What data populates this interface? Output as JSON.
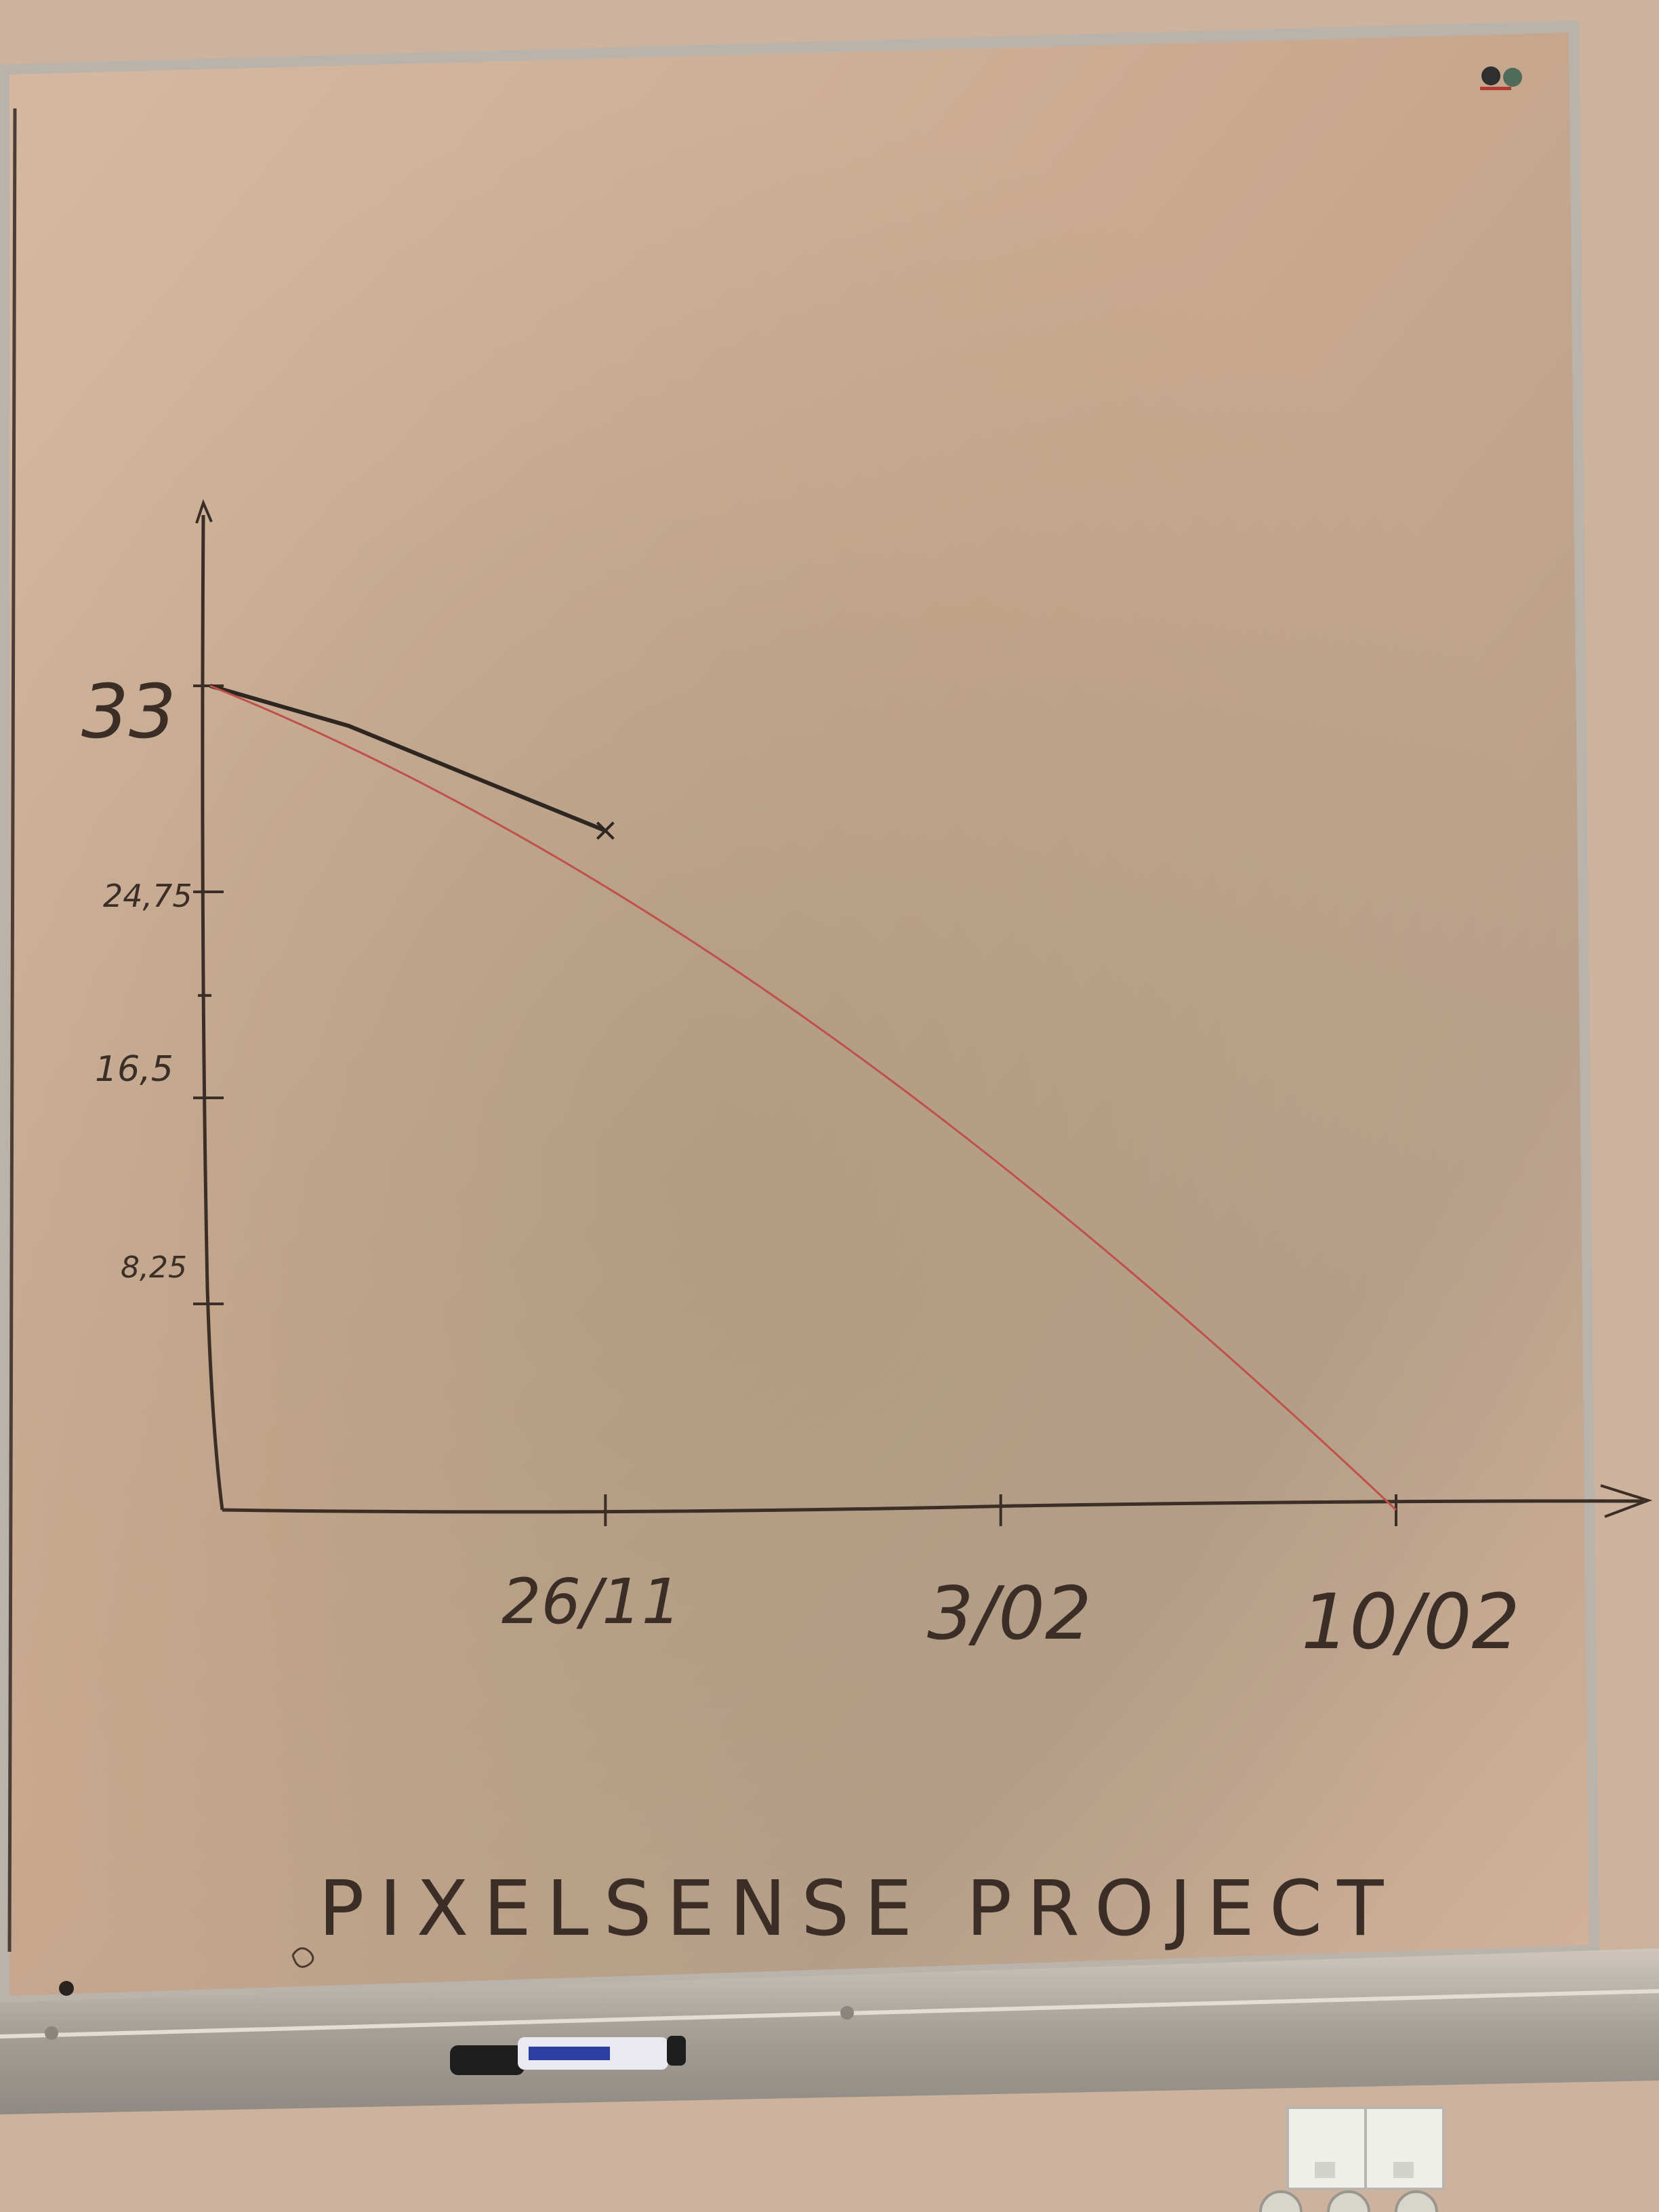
{
  "chart_data": {
    "type": "line",
    "title": "PIXELSENSE PROJECT",
    "xlabel": "",
    "ylabel": "",
    "x_tick_labels": [
      "26/11",
      "3/02",
      "10/02"
    ],
    "y_tick_labels": [
      "33",
      "24,75",
      "16,5",
      "8,25"
    ],
    "y_ticks": [
      33,
      24.75,
      16.5,
      8.25
    ],
    "ylim": [
      0,
      40
    ],
    "xlim": [
      0,
      3.6
    ],
    "series": [
      {
        "name": "",
        "color": "#2e2620",
        "x": [
          0,
          0.35,
          0.72,
          1.0
        ],
        "y": [
          33,
          31.4,
          29.0,
          27.2
        ],
        "end_marker": "x"
      },
      {
        "name": "",
        "color": "#c0504a",
        "x": [
          0,
          3.0
        ],
        "y": [
          33,
          0
        ],
        "curve": "ideal"
      }
    ],
    "grid": false,
    "legend": "none"
  },
  "board": {
    "surface_color": "#c8a88f",
    "frame_color": "#b3b0a9",
    "tray_color": "#a8a39b",
    "marker_cap_color": "#1e1e1e",
    "marker_body_color": "#e9e9ef",
    "marker_label_color": "#2c3fa0"
  }
}
